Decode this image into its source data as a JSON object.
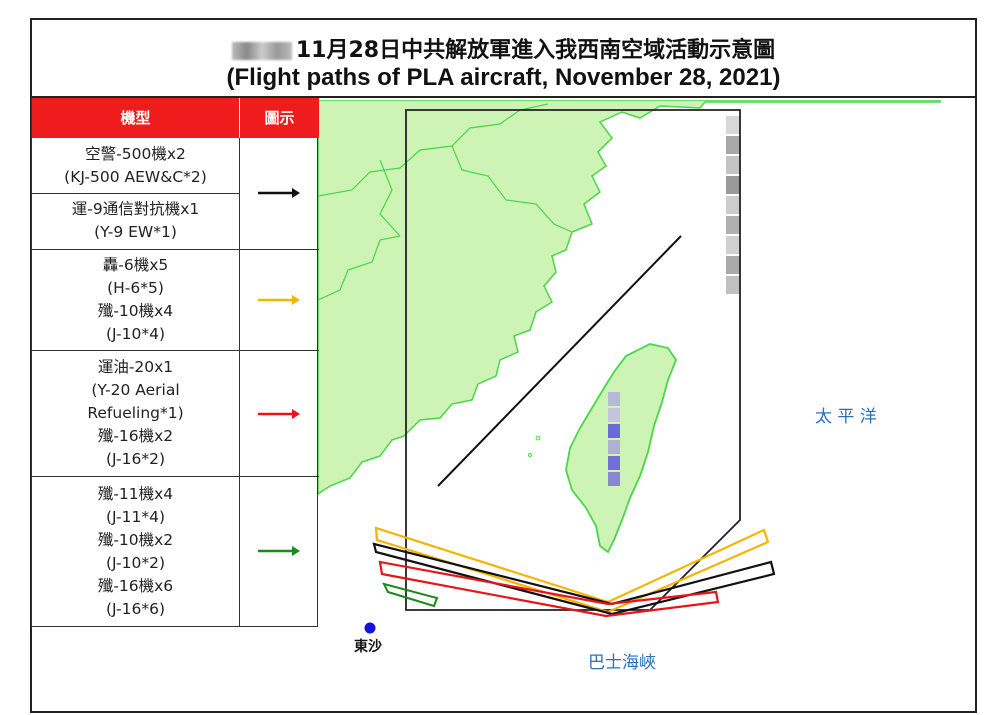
{
  "title": {
    "zh": "11月28日中共解放軍進入我西南空域活動示意圖",
    "en": "(Flight paths of PLA aircraft, November 28, 2021)"
  },
  "legend": {
    "header_type": "機型",
    "header_icon": "圖示",
    "groups": [
      {
        "color": "#111111",
        "entries": [
          [
            "空警-500機x2",
            "(KJ-500 AEW&C*2)"
          ],
          [
            "運-9通信對抗機x1",
            "(Y-9 EW*1)"
          ]
        ]
      },
      {
        "color": "#f5b400",
        "entries": [
          [
            "轟-6機x5",
            "(H-6*5)",
            "殲-10機x4",
            "(J-10*4)"
          ]
        ]
      },
      {
        "color": "#e8141c",
        "entries": [
          [
            "運油-20x1",
            "(Y-20 Aerial",
            "Refueling*1)",
            "殲-16機x2",
            "(J-16*2)"
          ]
        ]
      },
      {
        "color": "#1a8a1a",
        "entries": [
          [
            "殲-11機x4",
            "(J-11*4)",
            "殲-10機x2",
            "(J-10*2)",
            "殲-16機x6",
            "(J-16*6)"
          ]
        ]
      }
    ]
  },
  "map": {
    "labels": {
      "pacific": "太 平 洋",
      "bashi": "巴士海峽",
      "dongsha": "東沙"
    },
    "colors": {
      "land": "#cdf3b5",
      "coast": "#49d649",
      "black": "#111111",
      "yellow": "#f5b400",
      "red": "#e8141c",
      "green": "#1a8a1a",
      "label_blue": "#2a6fb8",
      "dot_blue": "#1414d8"
    }
  }
}
